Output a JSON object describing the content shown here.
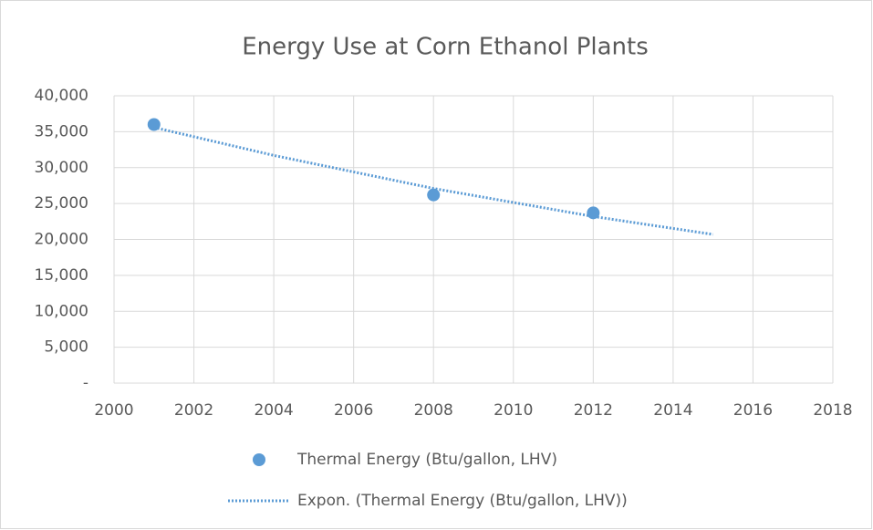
{
  "chart_data": {
    "type": "scatter",
    "title": "Energy Use at Corn Ethanol Plants",
    "series": [
      {
        "name": "Thermal Energy (Btu/gallon, LHV)",
        "color": "#5b9bd5",
        "style": "marker",
        "x": [
          2001,
          2008,
          2012
        ],
        "values": [
          36000,
          26200,
          23700
        ]
      },
      {
        "name": "Expon. (Thermal Energy (Btu/gallon, LHV))",
        "color": "#5b9bd5",
        "style": "dotted",
        "x": [
          2001,
          2004,
          2008,
          2012,
          2015
        ],
        "values": [
          35600,
          31700,
          27100,
          23200,
          20700
        ]
      }
    ],
    "xlim": [
      2000,
      2018
    ],
    "xticks": [
      2000,
      2002,
      2004,
      2006,
      2008,
      2010,
      2012,
      2014,
      2016,
      2018
    ],
    "ylim": [
      0,
      40000
    ],
    "yticks": [
      {
        "value": 0,
        "label": "-"
      },
      {
        "value": 5000,
        "label": "5,000"
      },
      {
        "value": 10000,
        "label": "10,000"
      },
      {
        "value": 15000,
        "label": "15,000"
      },
      {
        "value": 20000,
        "label": "20,000"
      },
      {
        "value": 25000,
        "label": "25,000"
      },
      {
        "value": 30000,
        "label": "30,000"
      },
      {
        "value": 35000,
        "label": "35,000"
      },
      {
        "value": 40000,
        "label": "40,000"
      }
    ],
    "grid": true,
    "legend": "bottom"
  }
}
